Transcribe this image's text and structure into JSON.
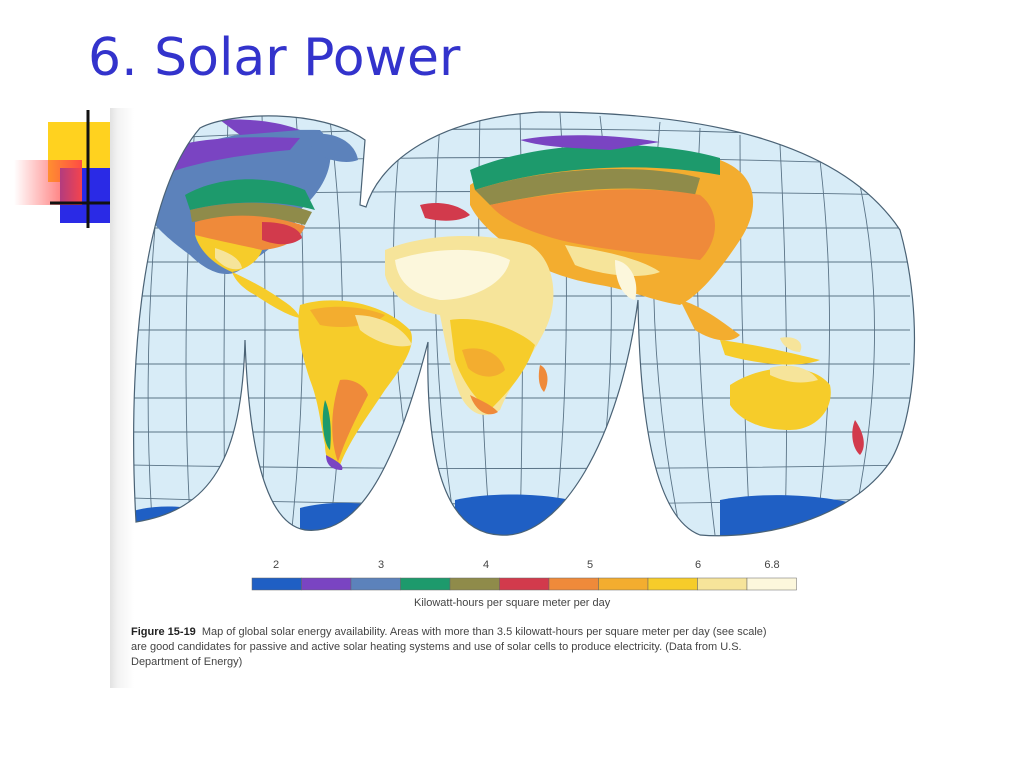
{
  "slide": {
    "title": "6. Solar Power"
  },
  "legend": {
    "tick_labels": [
      "2",
      "3",
      "4",
      "5",
      "6",
      "6.8"
    ],
    "caption": "Kilowatt-hours per square meter per day",
    "colors": [
      "#1f5fc4",
      "#7a44c2",
      "#5c82bb",
      "#1d9a6c",
      "#8f8b4a",
      "#d23a4c",
      "#ef8a3a",
      "#f3ad2f",
      "#f6cc2a",
      "#f6e49a",
      "#fcf7dc"
    ]
  },
  "figure": {
    "label": "Figure 15-19",
    "caption": "Map of global solar energy availability. Areas with more than 3.5 kilowatt-hours per square meter per day (see scale) are good candidates for passive and active solar heating systems and use of solar cells to produce electricity. (Data from U.S. Department of Energy)"
  },
  "colors": {
    "title": "#3333cc",
    "ocean": "#d8ecf7",
    "grid": "#5a7386",
    "deco_yellow": "#ffd21f",
    "deco_blue": "#2a2ae6",
    "deco_red": "#ff4545"
  },
  "icons": {
    "slide_decoration": "overlapping-squares-with-cross"
  }
}
